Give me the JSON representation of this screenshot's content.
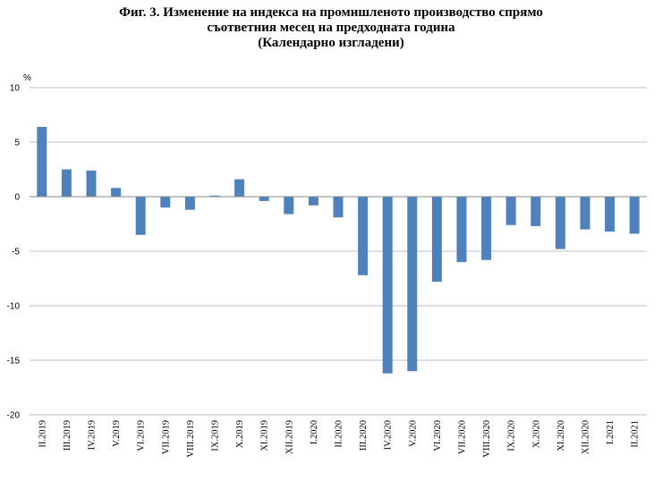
{
  "chart_data": {
    "type": "bar",
    "title_lines": [
      "Фиг. 3. Изменение на индекса на промишленото производство спрямо",
      "съответния месец на предходната година",
      "(Календарно изгладени)"
    ],
    "ylabel": "%",
    "ylim": [
      -20,
      10
    ],
    "yticks": [
      10,
      5,
      0,
      -5,
      -10,
      -15,
      -20
    ],
    "grid": true,
    "bar_color": "#4f81bd",
    "categories": [
      "II.2019",
      "III.2019",
      "IV.2019",
      "V.2019",
      "VI.2019",
      "VII.2019",
      "VIII.2019",
      "IX.2019",
      "X.2019",
      "XI.2019",
      "XII.2019",
      "I.2020",
      "II.2020",
      "III.2020",
      "IV.2020",
      "V.2020",
      "VI.2020",
      "VII.2020",
      "VIII.2020",
      "IX.2020",
      "X.2020",
      "XI.2020",
      "XII.2020",
      "I.2021",
      "II.2021"
    ],
    "values": [
      6.4,
      2.5,
      2.4,
      0.8,
      -3.5,
      -1.0,
      -1.2,
      0.1,
      1.6,
      -0.4,
      -1.6,
      -0.8,
      -1.9,
      -7.2,
      -16.2,
      -16.0,
      -7.8,
      -6.0,
      -5.8,
      -2.6,
      -2.7,
      -4.8,
      -3.0,
      -3.2,
      -3.4
    ]
  }
}
